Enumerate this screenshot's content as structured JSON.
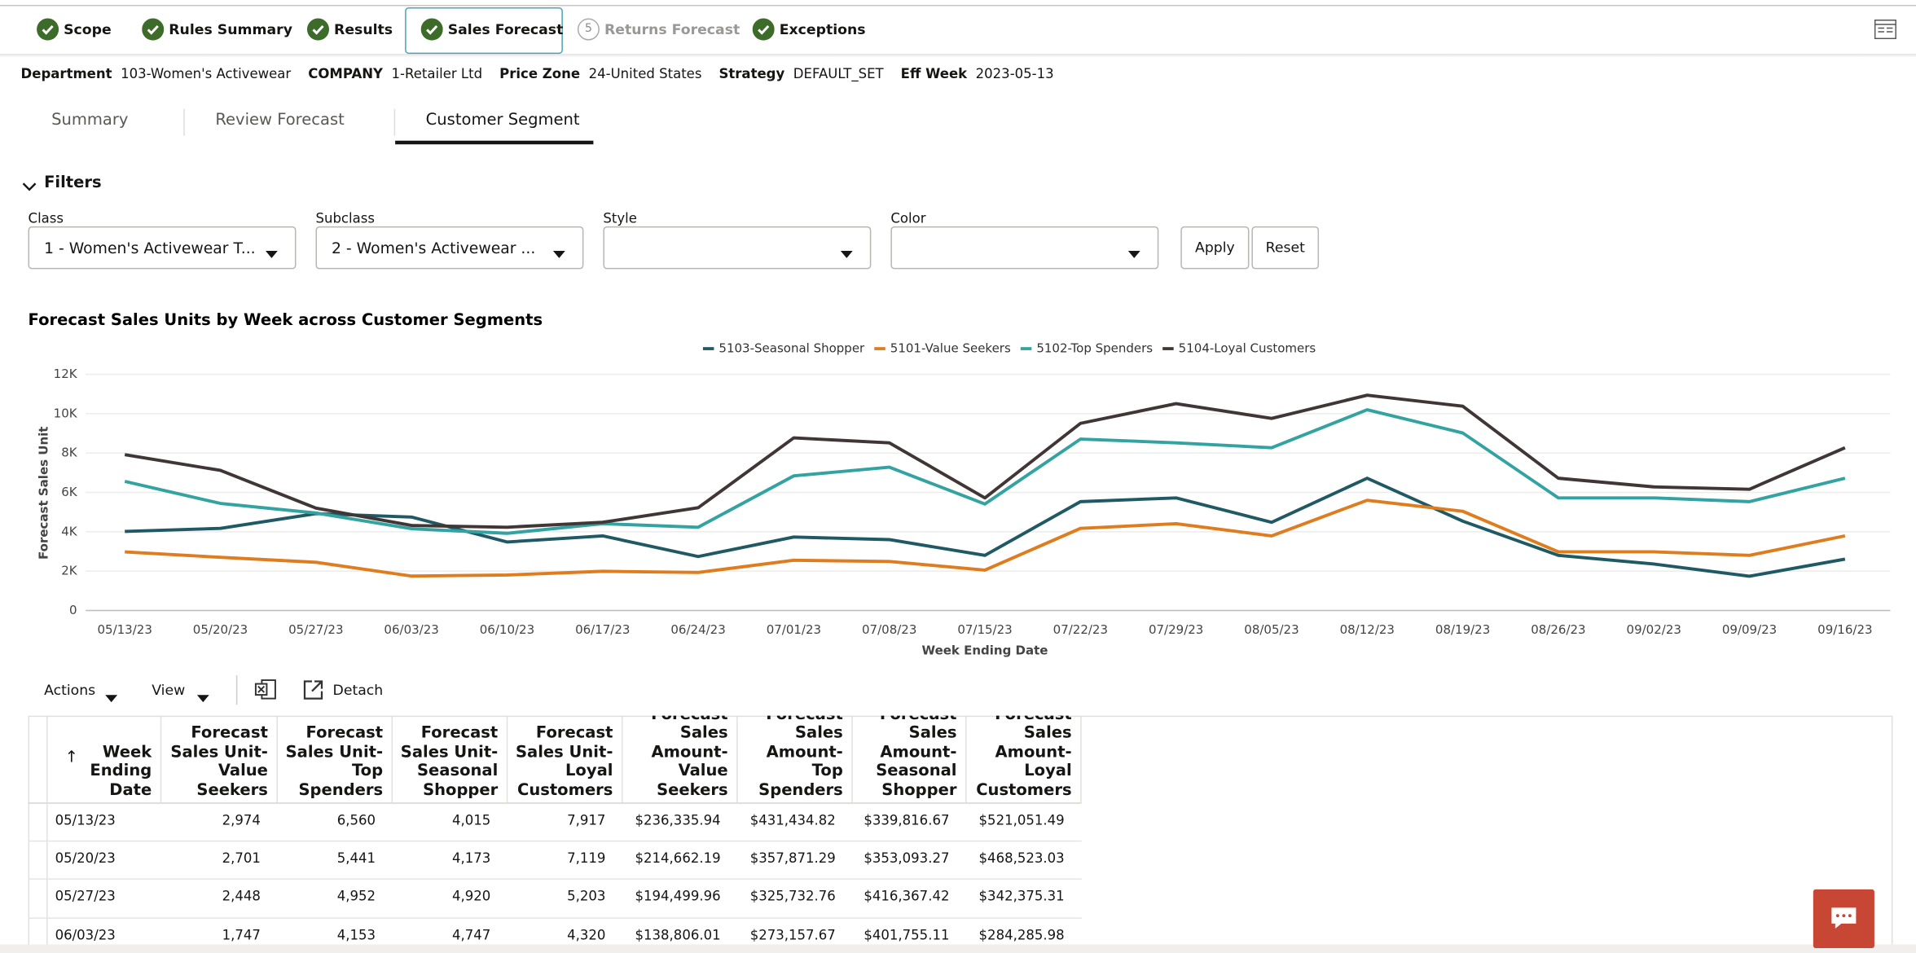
{
  "steps": [
    {
      "label": "Scope"
    },
    {
      "label": "Rules Summary"
    },
    {
      "label": "Results"
    },
    {
      "label": "Sales Forecast"
    },
    {
      "number": "5",
      "label": "Returns Forecast"
    },
    {
      "label": "Exceptions"
    }
  ],
  "header_fields": [
    {
      "label": "Department",
      "value": "103-Women's Activewear"
    },
    {
      "label": "COMPANY",
      "value": "1-Retailer Ltd"
    },
    {
      "label": "Price Zone",
      "value": "24-United States"
    },
    {
      "label": "Strategy",
      "value": "DEFAULT_SET"
    },
    {
      "label": "Eff Week",
      "value": "2023-05-13"
    }
  ],
  "tabs": [
    "Summary",
    "Review Forecast",
    "Customer Segment"
  ],
  "filters": {
    "title": "Filters",
    "fields": [
      {
        "label": "Class",
        "value": "1 - Women's Activewear T..."
      },
      {
        "label": "Subclass",
        "value": "2 - Women's Activewear ..."
      },
      {
        "label": "Style"
      },
      {
        "label": "Color"
      }
    ],
    "buttons": [
      "Apply",
      "Reset"
    ]
  },
  "chart_data": {
    "type": "line",
    "title": "Forecast Sales Units by Week across Customer Segments",
    "x": [
      "05/13/23",
      "05/20/23",
      "05/27/23",
      "06/03/23",
      "06/10/23",
      "06/17/23",
      "06/24/23",
      "07/01/23",
      "07/08/23",
      "07/15/23",
      "07/22/23",
      "07/29/23",
      "08/05/23",
      "08/12/23",
      "08/19/23",
      "08/26/23",
      "09/02/23",
      "09/09/23",
      "09/16/23"
    ],
    "series": [
      {
        "name": "5103-Seasonal Shopper",
        "color": "#1f5963",
        "values": [
          4015,
          4173,
          4920,
          4747,
          3480,
          3790,
          2740,
          3730,
          3600,
          2800,
          5530,
          5720,
          4480,
          6720,
          4540,
          2800,
          2360,
          1740,
          2610
        ]
      },
      {
        "name": "5101-Value Seekers",
        "color": "#de7c1e",
        "values": [
          2974,
          2701,
          2448,
          1747,
          1800,
          1990,
          1930,
          2550,
          2490,
          2050,
          4170,
          4410,
          3790,
          5600,
          5040,
          2980,
          2980,
          2800,
          3790
        ]
      },
      {
        "name": "5102-Top Spenders",
        "color": "#32a3a1",
        "values": [
          6560,
          5441,
          4952,
          4153,
          3920,
          4410,
          4230,
          6840,
          7280,
          5410,
          8710,
          8520,
          8270,
          10200,
          9020,
          5720,
          5720,
          5530,
          6720
        ]
      },
      {
        "name": "5104-Loyal Customers",
        "color": "#403636",
        "values": [
          7917,
          7119,
          5203,
          4320,
          4230,
          4480,
          5220,
          8770,
          8520,
          5720,
          9510,
          10510,
          9760,
          10940,
          10380,
          6720,
          6280,
          6160,
          8270
        ]
      }
    ],
    "xlabel": "Week Ending Date",
    "ylabel": "Forecast Sales Unit",
    "ylim": [
      0,
      12000
    ],
    "yticks": [
      0,
      {
        "value": 2000,
        "label": "2K"
      },
      {
        "value": 4000,
        "label": "4K"
      },
      {
        "value": 6000,
        "label": "6K"
      },
      {
        "value": 8000,
        "label": "8K"
      },
      {
        "value": 10000,
        "label": "10K"
      },
      {
        "value": 12000,
        "label": "12K"
      }
    ],
    "grid": true,
    "legend": "top"
  },
  "toolbar": {
    "actions": "Actions",
    "view": "View",
    "detach": "Detach"
  },
  "table": {
    "sort_indicator": "↑",
    "columns": [
      "Week Ending Date",
      "Forecast Sales Unit-Value Seekers",
      "Forecast Sales Unit-Top Spenders",
      "Forecast Sales Unit-Seasonal Shopper",
      "Forecast Sales Unit-Loyal Customers",
      "Forecast Sales Amount-Value Seekers",
      "Forecast Sales Amount-Top Spenders",
      "Forecast Sales Amount-Seasonal Shopper",
      "Forecast Sales Amount-Loyal Customers"
    ],
    "rows": [
      [
        "05/13/23",
        "2,974",
        "6,560",
        "4,015",
        "7,917",
        "$236,335.94",
        "$431,434.82",
        "$339,816.67",
        "$521,051.49"
      ],
      [
        "05/20/23",
        "2,701",
        "5,441",
        "4,173",
        "7,119",
        "$214,662.19",
        "$357,871.29",
        "$353,093.27",
        "$468,523.03"
      ],
      [
        "05/27/23",
        "2,448",
        "4,952",
        "4,920",
        "5,203",
        "$194,499.96",
        "$325,732.76",
        "$416,367.42",
        "$342,375.31"
      ],
      [
        "06/03/23",
        "1,747",
        "4,153",
        "4,747",
        "4,320",
        "$138,806.01",
        "$273,157.67",
        "$401,755.11",
        "$284,285.98"
      ]
    ]
  }
}
